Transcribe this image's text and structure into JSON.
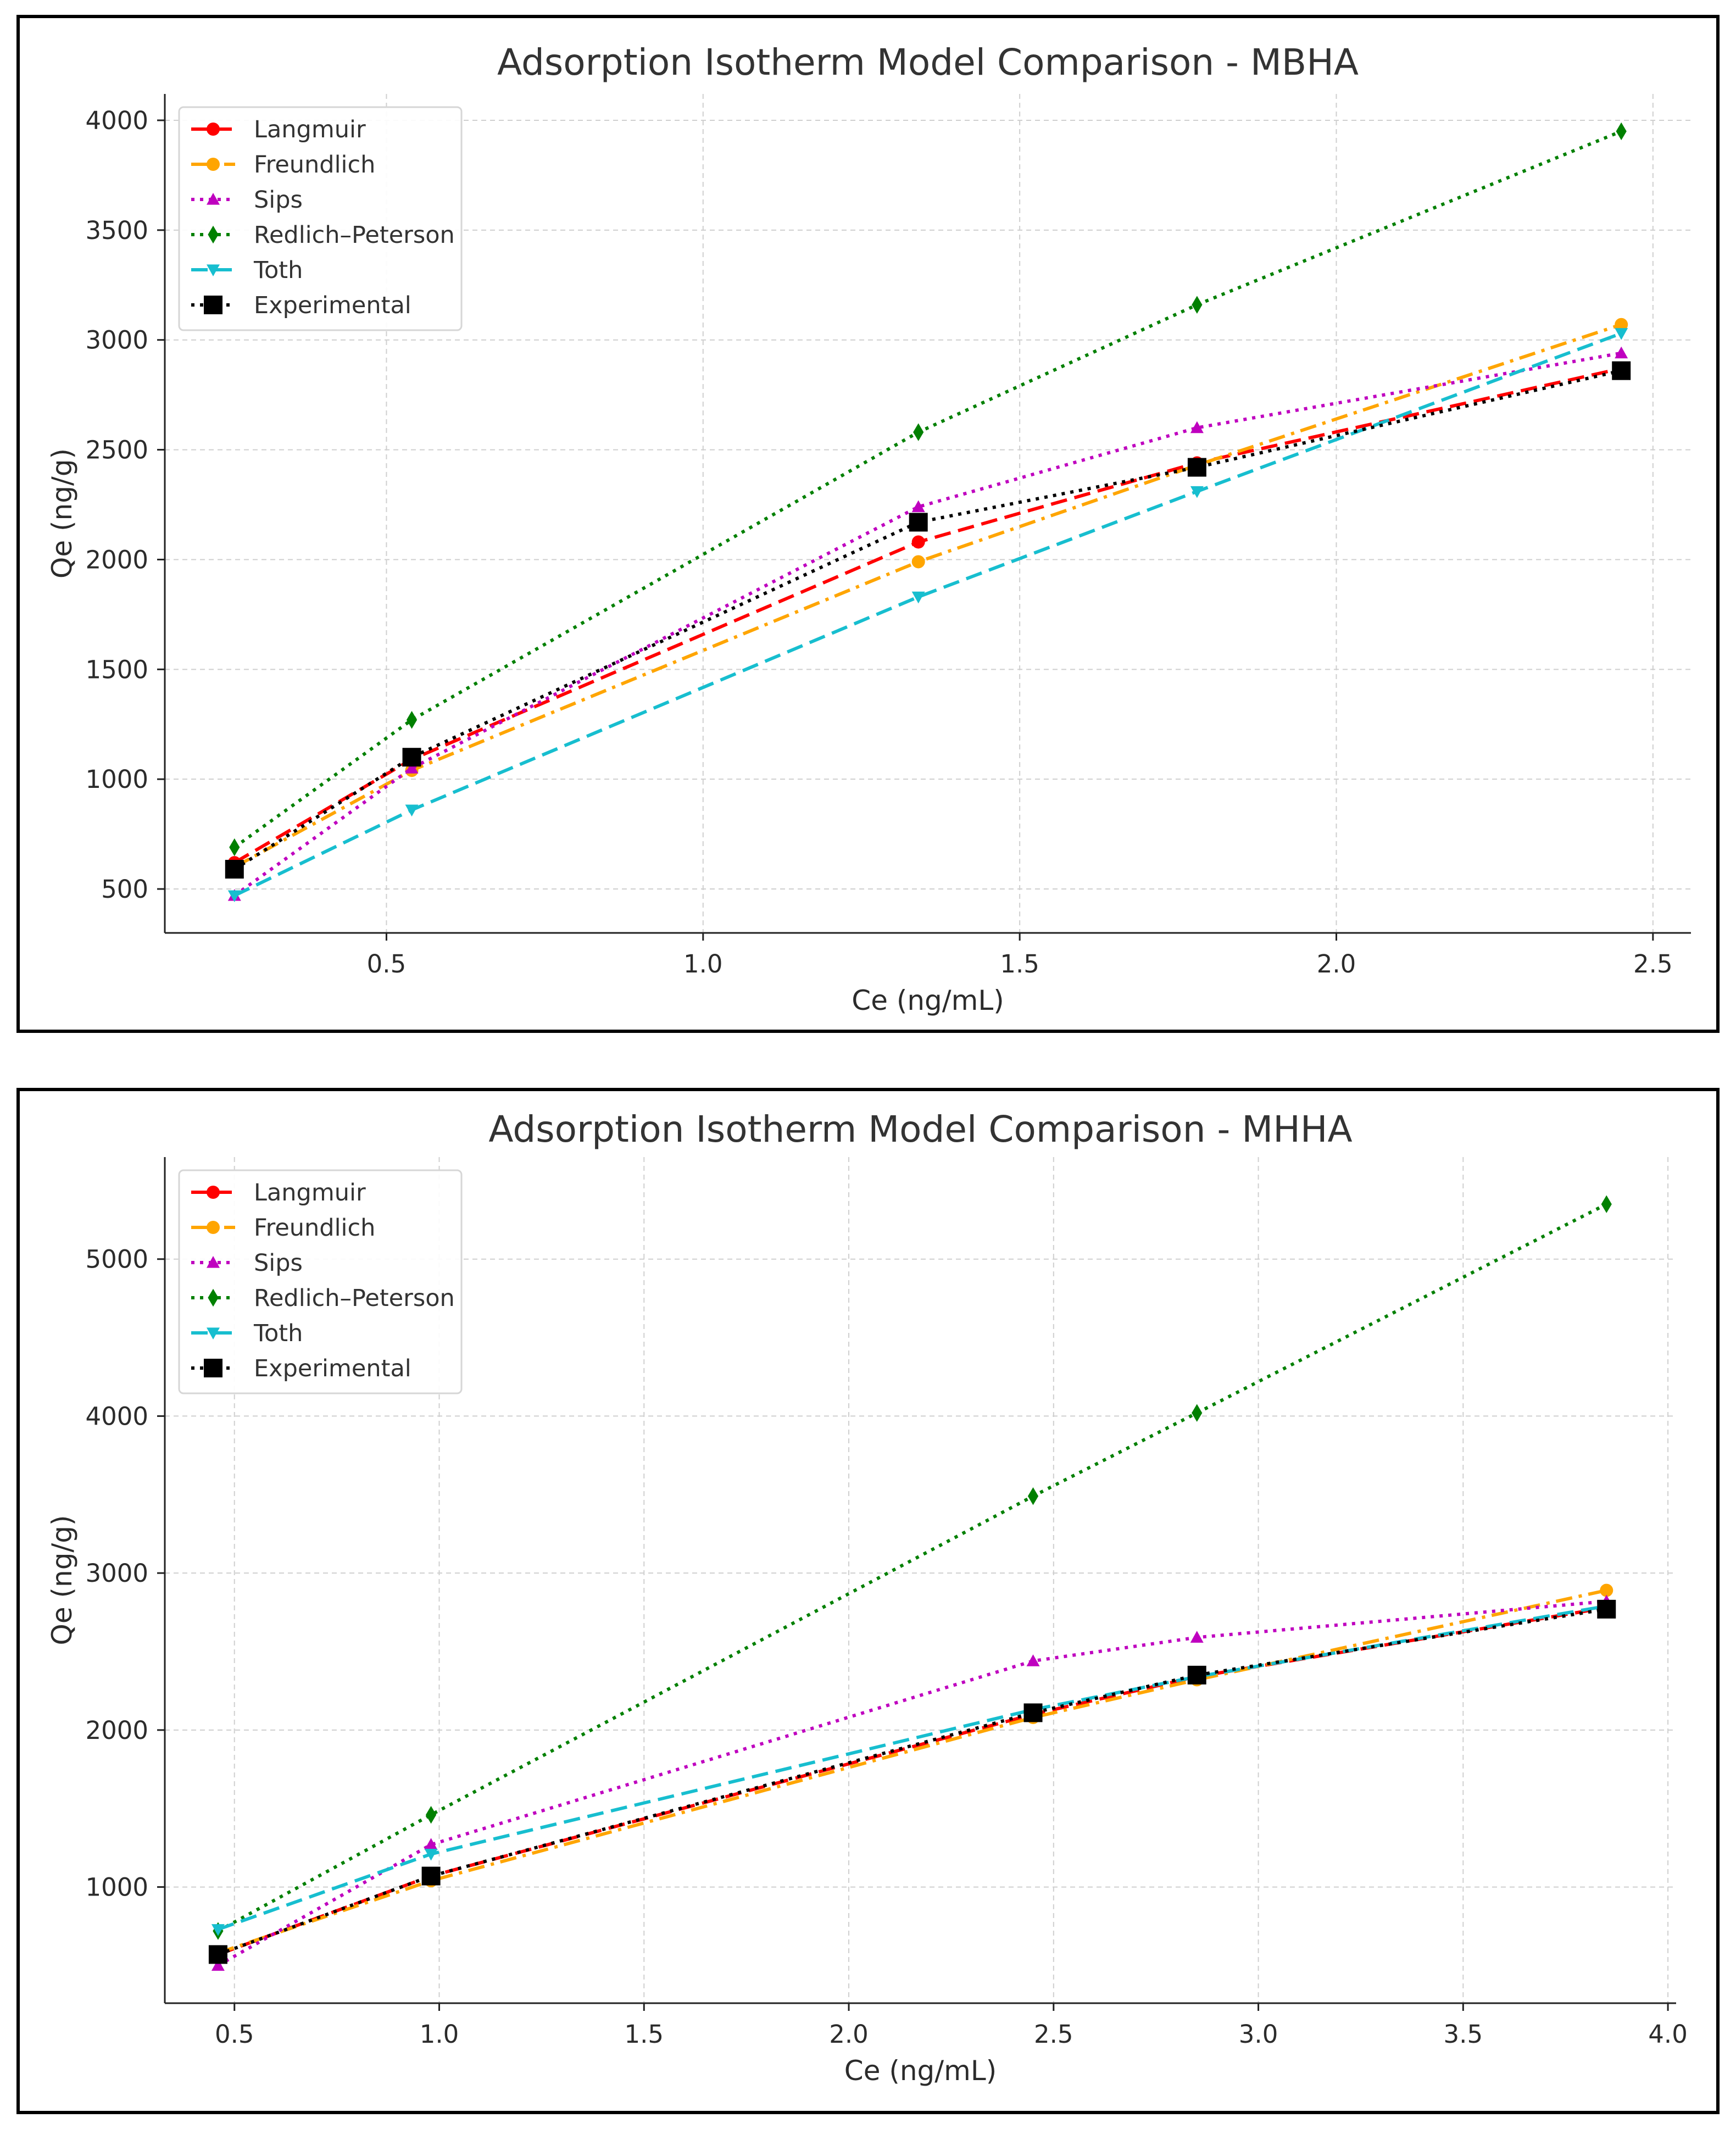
{
  "chart_data": [
    {
      "type": "line",
      "title": "Adsorption Isotherm Model Comparison - MBHA",
      "xlabel": "Ce (ng/mL)",
      "ylabel": "Qe (ng/g)",
      "xlim": [
        0.15,
        2.56
      ],
      "ylim": [
        300,
        4120
      ],
      "xticks": [
        0.5,
        1.0,
        1.5,
        2.0,
        2.5
      ],
      "xtick_labels": [
        "0.5",
        "1.0",
        "1.5",
        "2.0",
        "2.5"
      ],
      "yticks": [
        500,
        1000,
        1500,
        2000,
        2500,
        3000,
        3500,
        4000
      ],
      "ytick_labels": [
        "500",
        "1000",
        "1500",
        "2000",
        "2500",
        "3000",
        "3500",
        "4000"
      ],
      "grid": true,
      "legend": "top-left",
      "x": [
        0.26,
        0.54,
        1.34,
        1.78,
        2.45
      ],
      "series": [
        {
          "name": "Langmuir",
          "color": "#ff0000",
          "dash": "dashed",
          "marker": "circle",
          "values": [
            620,
            1090,
            2080,
            2440,
            2870
          ]
        },
        {
          "name": "Freundlich",
          "color": "#ffa500",
          "dash": "dashdot",
          "marker": "circle",
          "values": [
            600,
            1040,
            1990,
            2430,
            3070
          ]
        },
        {
          "name": "Sips",
          "color": "#bf00bf",
          "dash": "dotted",
          "marker": "triangle-up",
          "values": [
            470,
            1050,
            2240,
            2600,
            2940
          ]
        },
        {
          "name": "Redlich–Peterson",
          "color": "#008000",
          "dash": "dotted",
          "marker": "diamond",
          "values": [
            690,
            1270,
            2580,
            3160,
            3950
          ]
        },
        {
          "name": "Toth",
          "color": "#17becf",
          "dash": "dashed",
          "marker": "triangle-down",
          "values": [
            470,
            860,
            1830,
            2310,
            3030
          ]
        },
        {
          "name": "Experimental",
          "color": "#000000",
          "dash": "dotted",
          "marker": "square",
          "values": [
            590,
            1100,
            2170,
            2420,
            2860
          ]
        }
      ]
    },
    {
      "type": "line",
      "title": "Adsorption Isotherm Model Comparison - MHHA",
      "xlabel": "Ce (ng/mL)",
      "ylabel": "Qe (ng/g)",
      "xlim": [
        0.33,
        4.02
      ],
      "ylim": [
        260,
        5650
      ],
      "xticks": [
        0.5,
        1.0,
        1.5,
        2.0,
        2.5,
        3.0,
        3.5,
        4.0
      ],
      "xtick_labels": [
        "0.5",
        "1.0",
        "1.5",
        "2.0",
        "2.5",
        "3.0",
        "3.5",
        "4.0"
      ],
      "yticks": [
        1000,
        2000,
        3000,
        4000,
        5000
      ],
      "ytick_labels": [
        "1000",
        "2000",
        "3000",
        "4000",
        "5000"
      ],
      "grid": true,
      "legend": "top-left",
      "x": [
        0.46,
        0.98,
        2.45,
        2.85,
        3.85
      ],
      "series": [
        {
          "name": "Langmuir",
          "color": "#ff0000",
          "dash": "dashed",
          "marker": "circle",
          "values": [
            570,
            1070,
            2100,
            2340,
            2780
          ]
        },
        {
          "name": "Freundlich",
          "color": "#ffa500",
          "dash": "dashdot",
          "marker": "circle",
          "values": [
            580,
            1040,
            2080,
            2320,
            2890
          ]
        },
        {
          "name": "Sips",
          "color": "#bf00bf",
          "dash": "dotted",
          "marker": "triangle-up",
          "values": [
            500,
            1270,
            2440,
            2590,
            2820
          ]
        },
        {
          "name": "Redlich–Peterson",
          "color": "#008000",
          "dash": "dotted",
          "marker": "diamond",
          "values": [
            720,
            1460,
            3490,
            4020,
            5350
          ]
        },
        {
          "name": "Toth",
          "color": "#17becf",
          "dash": "dashed",
          "marker": "triangle-down",
          "values": [
            730,
            1210,
            2130,
            2340,
            2790
          ]
        },
        {
          "name": "Experimental",
          "color": "#000000",
          "dash": "dotted",
          "marker": "square",
          "values": [
            570,
            1070,
            2110,
            2350,
            2770
          ]
        }
      ]
    }
  ]
}
